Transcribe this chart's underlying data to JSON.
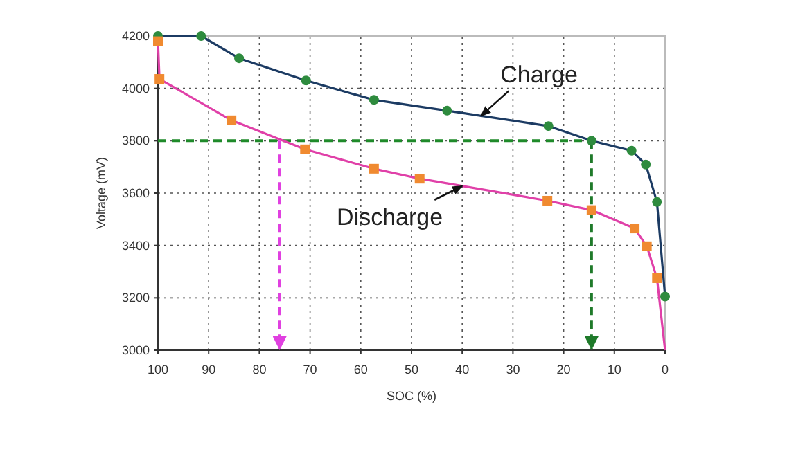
{
  "chart_data": {
    "type": "line",
    "xlabel": "SOC (%)",
    "ylabel": "Voltage (mV)",
    "xlim": [
      100,
      0
    ],
    "xticks": [
      100,
      90,
      80,
      70,
      60,
      50,
      40,
      30,
      20,
      10,
      0
    ],
    "ylim": [
      3000,
      4200
    ],
    "yticks": [
      3000,
      3200,
      3400,
      3600,
      3800,
      4000,
      4200
    ],
    "grid": true,
    "series": [
      {
        "color": "#1c3b63",
        "x": [
          100,
          91.5,
          84,
          70.8,
          57.4,
          43,
          23,
          14.5,
          6.6,
          3.8,
          1.6,
          0
        ],
        "values": [
          4200,
          4200,
          4115,
          4030,
          3956,
          3915,
          3856,
          3800,
          3762,
          3709,
          3566,
          3205
        ]
      },
      {
        "type": "scatter",
        "color": "#2e8b3e",
        "marker": "circle",
        "x": [
          100,
          91.5,
          84,
          70.8,
          57.4,
          43,
          23,
          14.5,
          6.6,
          3.8,
          1.6,
          0
        ],
        "values": [
          4200,
          4200,
          4115,
          4030,
          3956,
          3915,
          3856,
          3800,
          3762,
          3709,
          3566,
          3205
        ]
      },
      {
        "color": "#e040a8",
        "x": [
          100,
          99.7,
          85.5,
          71,
          57.4,
          48.4,
          23.2,
          14.5,
          6,
          3.6,
          1.6,
          0
        ],
        "values": [
          4180,
          4036,
          3878,
          3767,
          3693,
          3655,
          3571,
          3535,
          3465,
          3397,
          3275,
          3000
        ]
      },
      {
        "type": "scatter",
        "color": "#f08a30",
        "marker": "square",
        "x": [
          100,
          99.7,
          85.5,
          71,
          57.4,
          48.4,
          23.2,
          14.5,
          6,
          3.6,
          1.6
        ],
        "values": [
          4180,
          4036,
          3878,
          3767,
          3693,
          3655,
          3571,
          3535,
          3465,
          3397,
          3275
        ]
      }
    ],
    "ref_lines": [
      {
        "axis": "y",
        "value": 3800,
        "color": "#1f8a2a",
        "line_style": "dashed"
      },
      {
        "axis": "x",
        "value": 76,
        "color": "#e040e0",
        "line_style": "dashed"
      },
      {
        "axis": "x",
        "value": 14.5,
        "color": "#1f7a2a",
        "line_style": "dashed"
      }
    ],
    "annotations": [
      {
        "text": "Charge",
        "x": 36.3,
        "y": 3895
      },
      {
        "text": "Discharge",
        "x": 40,
        "y": 3627
      }
    ]
  }
}
